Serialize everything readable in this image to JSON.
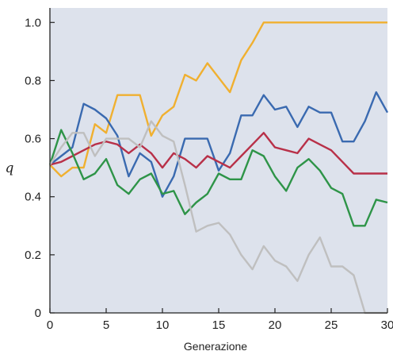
{
  "chart_data": {
    "type": "line",
    "title": "",
    "xlabel": "Generazione",
    "ylabel": "q",
    "xlim": [
      0,
      30
    ],
    "ylim": [
      0,
      1.05
    ],
    "xticks": [
      0,
      5,
      10,
      15,
      20,
      25,
      30
    ],
    "xtick_labels": [
      "0",
      "5",
      "10",
      "15",
      "20",
      "25",
      "30"
    ],
    "yticks": [
      0,
      0.2,
      0.4,
      0.6,
      0.8,
      1.0
    ],
    "ytick_labels": [
      "0",
      "0.2",
      "0.4",
      "0.6",
      "0.8",
      "1.0"
    ],
    "grid": false,
    "legend": "none",
    "background_color": "#dde2ec",
    "x": [
      0,
      1,
      2,
      3,
      4,
      5,
      6,
      7,
      8,
      9,
      10,
      11,
      12,
      13,
      14,
      15,
      16,
      17,
      18,
      19,
      20,
      21,
      22,
      23,
      24,
      25,
      26,
      27,
      28,
      29,
      30
    ],
    "series": [
      {
        "color": "#f0b030",
        "values": [
          0.51,
          0.47,
          0.5,
          0.5,
          0.65,
          0.62,
          0.75,
          0.75,
          0.75,
          0.61,
          0.68,
          0.71,
          0.82,
          0.8,
          0.86,
          0.81,
          0.76,
          0.87,
          0.93,
          1.0,
          1.0,
          1.0,
          1.0,
          1.0,
          1.0,
          1.0,
          1.0,
          1.0,
          1.0,
          1.0,
          1.0
        ]
      },
      {
        "color": "#3a6ab0",
        "values": [
          0.51,
          0.54,
          0.57,
          0.72,
          0.7,
          0.67,
          0.61,
          0.47,
          0.55,
          0.52,
          0.4,
          0.47,
          0.6,
          0.6,
          0.6,
          0.49,
          0.55,
          0.68,
          0.68,
          0.75,
          0.7,
          0.71,
          0.64,
          0.71,
          0.69,
          0.69,
          0.59,
          0.59,
          0.66,
          0.76,
          0.69
        ]
      },
      {
        "color": "#b83048",
        "values": [
          0.51,
          0.52,
          0.54,
          0.56,
          0.58,
          0.59,
          0.58,
          0.55,
          0.58,
          0.55,
          0.5,
          0.55,
          0.53,
          0.5,
          0.54,
          0.52,
          0.5,
          0.54,
          0.58,
          0.62,
          0.57,
          0.56,
          0.55,
          0.6,
          0.58,
          0.56,
          0.52,
          0.48,
          0.48,
          0.48,
          0.48
        ]
      },
      {
        "color": "#2e9448",
        "values": [
          0.51,
          0.63,
          0.55,
          0.46,
          0.48,
          0.53,
          0.44,
          0.41,
          0.46,
          0.48,
          0.41,
          0.42,
          0.34,
          0.38,
          0.41,
          0.48,
          0.46,
          0.46,
          0.56,
          0.54,
          0.47,
          0.42,
          0.5,
          0.53,
          0.49,
          0.43,
          0.41,
          0.3,
          0.3,
          0.39,
          0.38
        ]
      },
      {
        "color": "#bfbfbf",
        "values": [
          0.51,
          0.57,
          0.62,
          0.62,
          0.54,
          0.6,
          0.6,
          0.6,
          0.57,
          0.66,
          0.61,
          0.59,
          0.44,
          0.28,
          0.3,
          0.31,
          0.27,
          0.2,
          0.15,
          0.23,
          0.18,
          0.16,
          0.11,
          0.2,
          0.26,
          0.16,
          0.16,
          0.13,
          0.0,
          0.0,
          0.0
        ]
      }
    ]
  }
}
